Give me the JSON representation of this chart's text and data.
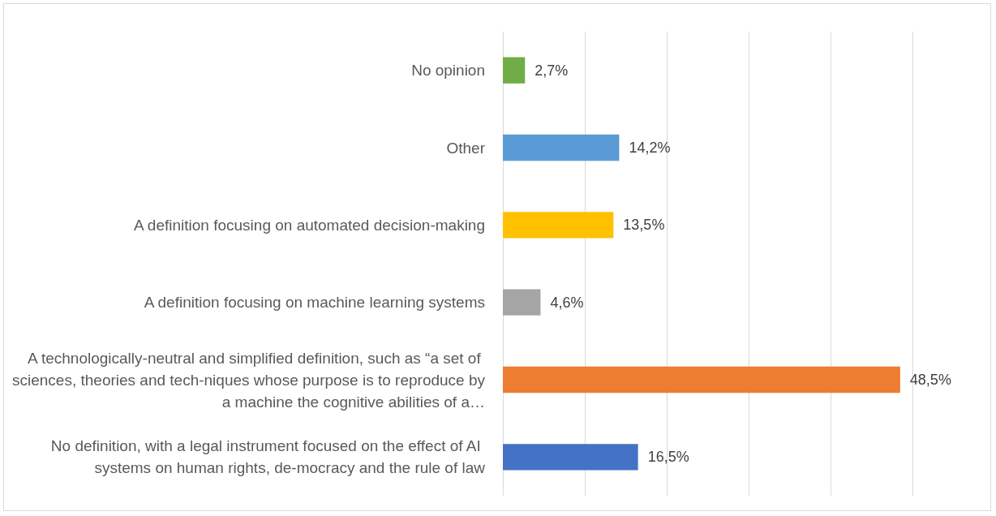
{
  "chart_data": {
    "type": "bar",
    "orientation": "horizontal",
    "categories": [
      "No opinion",
      "Other",
      "A definition focusing on automated decision-making",
      "A definition focusing on machine learning systems",
      "A technologically-neutral and simplified definition, such as “a set of sciences, theories and tech-niques whose purpose is to reproduce by a machine the cognitive abilities of a…",
      "No definition, with a legal instrument focused on the effect of AI systems on human rights, de-mocracy and the rule of law"
    ],
    "values": [
      2.7,
      14.2,
      13.5,
      4.6,
      48.5,
      16.5
    ],
    "colors": [
      "#70ad47",
      "#5b9bd5",
      "#ffc000",
      "#a5a5a5",
      "#ed7d31",
      "#4472c4"
    ],
    "value_labels": [
      "2,7%",
      "14,2%",
      "13,5%",
      "4,6%",
      "48,5%",
      "16,5%"
    ],
    "xlim": [
      0,
      50
    ],
    "xticks": [
      {
        "value": 0,
        "label": null
      },
      {
        "value": 10,
        "label": null
      },
      {
        "value": 20,
        "label": null
      },
      {
        "value": 30,
        "label": null
      },
      {
        "value": 40,
        "label": null
      },
      {
        "value": 50,
        "label": null
      }
    ],
    "grid": "x",
    "tick_labels": "y"
  }
}
